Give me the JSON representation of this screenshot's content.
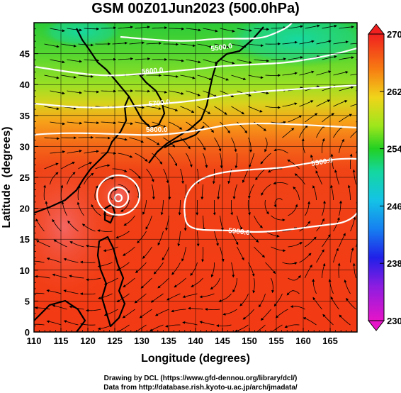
{
  "chart_data": {
    "type": "heatmap",
    "title": "GSM 00Z01Jun2023 (500.0hPa)",
    "xlabel": "Longitude (degrees)",
    "ylabel": "Latitude  (degrees)",
    "xlim": [
      110,
      170
    ],
    "ylim": [
      0,
      50
    ],
    "xticks": [
      "110",
      "115",
      "120",
      "125",
      "130",
      "135",
      "140",
      "145",
      "150",
      "155",
      "160",
      "165"
    ],
    "yticks": [
      "0",
      "5",
      "10",
      "15",
      "20",
      "25",
      "30",
      "35",
      "40",
      "45"
    ],
    "colorbar": {
      "min": 230,
      "max": 270,
      "ticks": [
        "270",
        "262",
        "254",
        "246",
        "238",
        "230"
      ]
    },
    "temperature_by_latitude": [
      {
        "lat": 0,
        "value": 267
      },
      {
        "lat": 10,
        "value": 267
      },
      {
        "lat": 20,
        "value": 266.5
      },
      {
        "lat": 28,
        "value": 266
      },
      {
        "lat": 33,
        "value": 264
      },
      {
        "lat": 36,
        "value": 262
      },
      {
        "lat": 40,
        "value": 259
      },
      {
        "lat": 44,
        "value": 256
      },
      {
        "lat": 47,
        "value": 253
      },
      {
        "lat": 50,
        "value": 251
      }
    ],
    "contour_labels": [
      "5500.0",
      "5600.0",
      "5700.0",
      "5800.0",
      "5900.0",
      "5900.0"
    ],
    "grid": true,
    "overlays": [
      "coastlines",
      "wind streamlines",
      "height contours"
    ]
  },
  "footer": {
    "line1": "Drawing by DCL (https://www.gfd-dennou.org/library/dcl/)",
    "line2": "Data from http://database.rish.kyoto-u.ac.jp/arch/jmadata/"
  },
  "colors": {
    "warm": "#f03a14",
    "orange": "#f7a019",
    "green": "#2cc92c",
    "teal": "#17d7a4",
    "contour": "#ffffff"
  }
}
